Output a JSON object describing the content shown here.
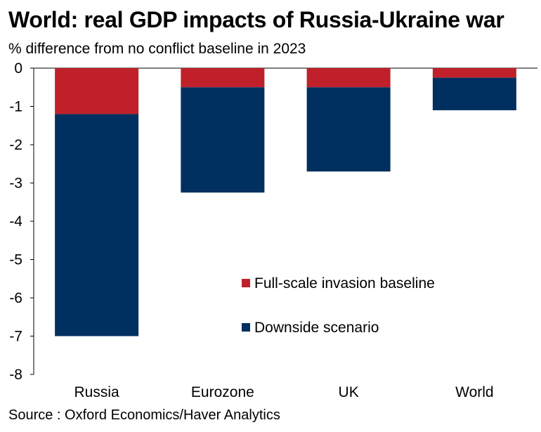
{
  "header": {
    "title": "World: real GDP impacts of Russia-Ukraine war",
    "subtitle": "% difference from no conflict baseline in 2023"
  },
  "footer": {
    "source": "Source : Oxford Economics/Haver Analytics"
  },
  "chart_data": {
    "type": "bar",
    "stacked": true,
    "title": "World: real GDP impacts of Russia-Ukraine war",
    "subtitle": "% difference from no conflict baseline in 2023",
    "xlabel": "",
    "ylabel": "",
    "categories": [
      "Russia",
      "Eurozone",
      "UK",
      "World"
    ],
    "series": [
      {
        "name": "Full-scale invasion baseline",
        "values": [
          -1.2,
          -0.5,
          -0.5,
          -0.25
        ],
        "color": "#c0202a"
      },
      {
        "name": "Downside scenario",
        "values": [
          -5.8,
          -2.75,
          -2.2,
          -0.85
        ],
        "color": "#00305f"
      }
    ],
    "ylim": [
      -8,
      0
    ],
    "yticks": [
      0,
      -1,
      -2,
      -3,
      -4,
      -5,
      -6,
      -7,
      -8
    ],
    "grid": false,
    "legend_position": "bottom-right-inside"
  }
}
